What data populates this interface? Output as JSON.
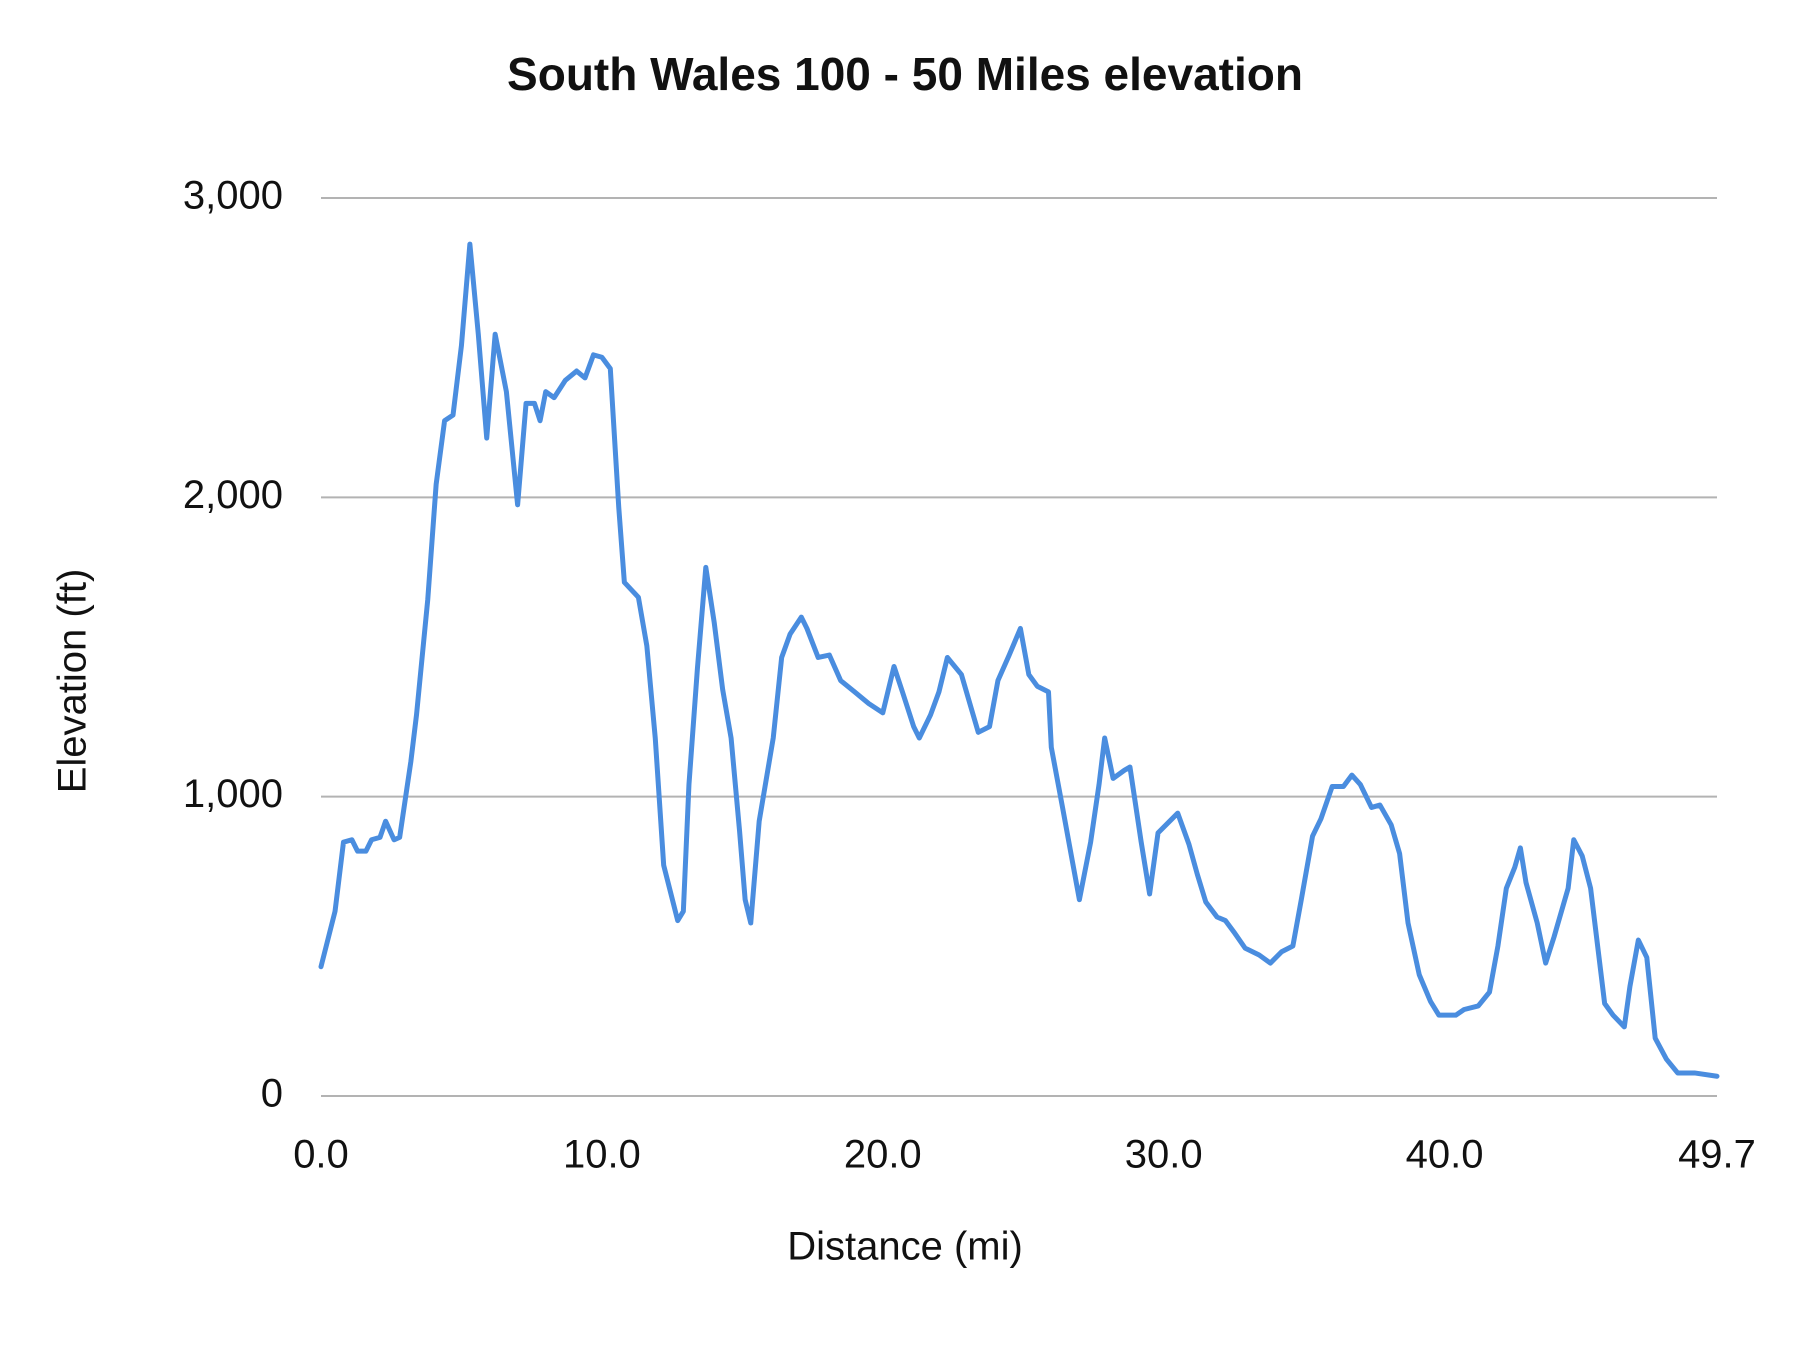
{
  "chart_data": {
    "type": "line",
    "title": "South Wales 100 - 50 Miles elevation",
    "x_label": "Distance (mi)",
    "y_label": "Elevation (ft)",
    "color": "#4a8ddf",
    "grid": true,
    "xlim": [
      0,
      49.7
    ],
    "xticks": [
      {
        "value": 0,
        "label": "0.0"
      },
      {
        "value": 10,
        "label": "10.0"
      },
      {
        "value": 20,
        "label": "20.0"
      },
      {
        "value": 30,
        "label": "30.0"
      },
      {
        "value": 40,
        "label": "40.0"
      },
      49.7
    ],
    "ylim": [
      0,
      3000
    ],
    "yticks": [
      0,
      {
        "value": 1000,
        "label": "1,000"
      },
      {
        "value": 2000,
        "label": "2,000"
      },
      {
        "value": 3000,
        "label": "3,000"
      }
    ],
    "x": [
      0,
      0.5,
      0.8,
      1.1,
      1.3,
      1.6,
      1.8,
      2.1,
      2.3,
      2.6,
      2.8,
      3.2,
      3.4,
      3.8,
      4.1,
      4.4,
      4.7,
      5.0,
      5.3,
      5.6,
      5.9,
      6.2,
      6.6,
      7.0,
      7.3,
      7.6,
      7.8,
      8.0,
      8.3,
      8.7,
      9.1,
      9.4,
      9.7,
      10.0,
      10.3,
      10.6,
      10.8,
      11.3,
      11.6,
      11.9,
      12.2,
      12.7,
      12.9,
      13.1,
      13.4,
      13.7,
      14.0,
      14.3,
      14.6,
      14.9,
      15.1,
      15.3,
      15.6,
      16.1,
      16.4,
      16.7,
      17.1,
      17.3,
      17.7,
      18.1,
      18.5,
      19.0,
      19.5,
      20.0,
      20.4,
      20.7,
      21.1,
      21.3,
      21.7,
      22.0,
      22.3,
      22.8,
      23.1,
      23.4,
      23.8,
      24.1,
      24.5,
      24.9,
      25.2,
      25.5,
      25.9,
      26.0,
      26.4,
      26.7,
      27.0,
      27.4,
      27.7,
      27.9,
      28.2,
      28.6,
      28.8,
      29.2,
      29.5,
      29.8,
      30.3,
      30.5,
      30.9,
      31.2,
      31.5,
      31.9,
      32.2,
      32.5,
      32.9,
      33.4,
      33.8,
      34.2,
      34.6,
      34.9,
      35.3,
      35.6,
      36.0,
      36.4,
      36.7,
      37.0,
      37.4,
      37.7,
      38.1,
      38.4,
      38.7,
      39.1,
      39.5,
      39.8,
      40.4,
      40.7,
      41.2,
      41.6,
      41.9,
      42.2,
      42.5,
      42.7,
      42.9,
      43.3,
      43.6,
      43.9,
      44.4,
      44.6,
      44.9,
      45.2,
      45.5,
      45.7,
      46.0,
      46.4,
      46.6,
      46.9,
      47.2,
      47.5,
      47.9,
      48.3,
      48.9,
      49.7
    ],
    "values": [
      432,
      617,
      848,
      856,
      818,
      818,
      856,
      864,
      918,
      856,
      864,
      1118,
      1273,
      1658,
      2044,
      2256,
      2275,
      2507,
      2846,
      2545,
      2198,
      2545,
      2353,
      1975,
      2314,
      2314,
      2256,
      2353,
      2333,
      2391,
      2422,
      2399,
      2476,
      2468,
      2430,
      1967,
      1716,
      1666,
      1504,
      1196,
      771,
      586,
      617,
      1041,
      1427,
      1766,
      1581,
      1358,
      1196,
      887,
      656,
      578,
      918,
      1196,
      1465,
      1543,
      1600,
      1562,
      1465,
      1473,
      1388,
      1350,
      1311,
      1280,
      1435,
      1350,
      1234,
      1196,
      1273,
      1350,
      1465,
      1408,
      1311,
      1215,
      1234,
      1388,
      1473,
      1562,
      1408,
      1369,
      1350,
      1165,
      964,
      810,
      656,
      848,
      1041,
      1196,
      1061,
      1088,
      1099,
      848,
      675,
      879,
      926,
      945,
      841,
      740,
      648,
      598,
      586,
      548,
      494,
      471,
      444,
      482,
      501,
      656,
      868,
      926,
      1034,
      1034,
      1072,
      1041,
      964,
      972,
      906,
      810,
      578,
      405,
      316,
      270,
      270,
      289,
      301,
      347,
      501,
      694,
      764,
      829,
      713,
      578,
      444,
      532,
      694,
      856,
      802,
      694,
      463,
      309,
      270,
      231,
      366,
      521,
      463,
      193,
      123,
      77,
      77,
      66
    ]
  }
}
